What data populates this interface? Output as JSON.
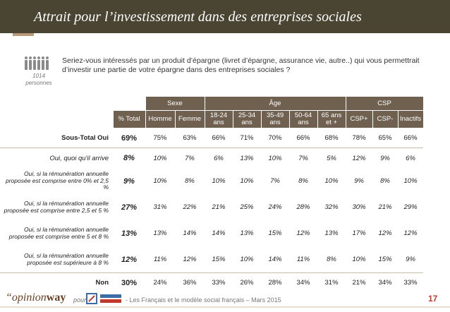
{
  "title": "Attrait pour l’investissement dans des entreprises sociales",
  "base": {
    "count": "1014",
    "unit": "personnes"
  },
  "question": "Seriez-vous intéressés par un produit d’épargne (livret d’épargne, assurance vie, autre..) qui vous permettrait d’investir une partie de votre épargne dans des entreprises sociales ?",
  "groups": {
    "sexe": "Sexe",
    "age": "Âge",
    "csp": "CSP"
  },
  "columns": [
    "% Total",
    "Homme",
    "Femme",
    "18-24 ans",
    "25-34 ans",
    "35-49 ans",
    "50-64 ans",
    "65 ans et +",
    "CSP+",
    "CSP-",
    "Inactifs"
  ],
  "chart_data": {
    "type": "table",
    "columns": [
      "% Total",
      "Homme",
      "Femme",
      "18-24 ans",
      "25-34 ans",
      "35-49 ans",
      "50-64 ans",
      "65 ans et +",
      "CSP+",
      "CSP-",
      "Inactifs"
    ],
    "rows": [
      {
        "label": "Sous-Total Oui",
        "values": [
          "69%",
          "75%",
          "63%",
          "66%",
          "71%",
          "70%",
          "66%",
          "68%",
          "78%",
          "65%",
          "66%"
        ]
      },
      {
        "label": "Oui, quoi qu'il arrive",
        "values": [
          "8%",
          "10%",
          "7%",
          "6%",
          "13%",
          "10%",
          "7%",
          "5%",
          "12%",
          "9%",
          "6%"
        ]
      },
      {
        "label": "Oui, si la rémunération annuelle proposée est comprise entre 0% et 2,5 %",
        "values": [
          "9%",
          "10%",
          "8%",
          "10%",
          "10%",
          "7%",
          "8%",
          "10%",
          "9%",
          "8%",
          "10%"
        ]
      },
      {
        "label": "Oui, si la rémunération annuelle proposée est comprise entre 2,5 et 5 %",
        "values": [
          "27%",
          "31%",
          "22%",
          "21%",
          "25%",
          "24%",
          "28%",
          "32%",
          "30%",
          "21%",
          "29%"
        ]
      },
      {
        "label": "Oui, si la rémunération annuelle proposée est comprise entre 5 et 8 %",
        "values": [
          "13%",
          "13%",
          "14%",
          "14%",
          "13%",
          "15%",
          "12%",
          "13%",
          "17%",
          "12%",
          "12%"
        ]
      },
      {
        "label": "Oui, si la rémunération annuelle proposée est supérieure à 8 %",
        "values": [
          "12%",
          "11%",
          "12%",
          "15%",
          "10%",
          "14%",
          "11%",
          "8%",
          "10%",
          "15%",
          "9%"
        ]
      },
      {
        "label": "Non",
        "values": [
          "30%",
          "24%",
          "36%",
          "33%",
          "26%",
          "28%",
          "34%",
          "31%",
          "21%",
          "34%",
          "33%"
        ]
      }
    ]
  },
  "footer": {
    "brand_open": "“opinion",
    "brand_way": "way",
    "pour": "pour",
    "text": "- Les Français et le modèle social français – Mars 2015",
    "page": "17"
  }
}
